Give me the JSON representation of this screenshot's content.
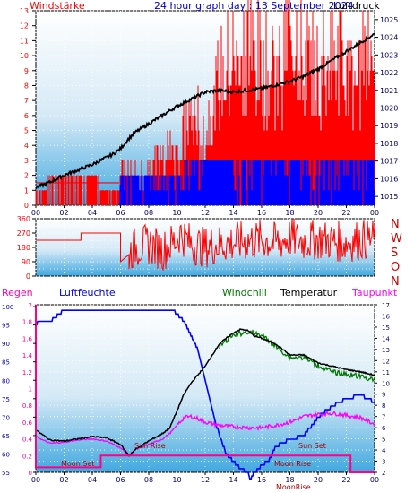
{
  "header": {
    "left_title": "Windstärke",
    "center_title": "24 hour graph day : 13 September 2024",
    "right_title": "Luftdruck"
  },
  "panel2": {
    "compass": [
      "N",
      "W",
      "S",
      "O",
      "N"
    ]
  },
  "panel3": {
    "labels": {
      "regen": "Regen",
      "luftfeuchte": "Luftfeuchte",
      "windchill": "Windchill",
      "temperatur": "Temperatur",
      "taupunkt": "Taupunkt"
    },
    "annotations": [
      "Moon Set",
      "Sun Rise",
      "Sun Set",
      "Moon Rise",
      "MoonRise"
    ]
  },
  "colors": {
    "wind": "#ff0000",
    "gust": "#0000ff",
    "pressure": "#000000",
    "humidity": "#0000ff",
    "temperature": "#000000",
    "windchill": "#007700",
    "dewpoint": "#ff00ff",
    "rain": "#ff0088",
    "axis_left_text": "#ff0000",
    "axis_pressure_text": "#000066",
    "axis_humidity_text": "#0000aa"
  },
  "chart_data": [
    {
      "type": "line",
      "title": "24 hour graph day : 13 September 2024",
      "x_ticks": [
        "00",
        "02",
        "04",
        "06",
        "08",
        "10",
        "12",
        "14",
        "16",
        "18",
        "20",
        "22",
        "00"
      ],
      "y_left": {
        "label": "Windstärke",
        "ticks": [
          0,
          1,
          2,
          3,
          4,
          5,
          6,
          7,
          8,
          9,
          10,
          11,
          12,
          13
        ],
        "lim": [
          0,
          13
        ]
      },
      "y_right": {
        "label": "Luftdruck",
        "ticks": [
          1015,
          1016,
          1017,
          1018,
          1019,
          1020,
          1021,
          1022,
          1023,
          1024,
          1025
        ],
        "lim": [
          1014.5,
          1025.5
        ]
      },
      "series": [
        {
          "name": "Luftdruck",
          "axis": "right",
          "x": [
            0,
            1,
            2,
            3,
            4,
            5,
            5.5,
            6,
            6.5,
            7,
            8,
            9,
            10,
            11,
            12,
            13,
            14,
            15,
            16,
            17,
            18,
            19,
            20,
            21,
            22,
            23,
            24
          ],
          "y": [
            1015.5,
            1015.8,
            1016.2,
            1016.5,
            1016.8,
            1017.2,
            1017.4,
            1017.7,
            1018.2,
            1018.6,
            1019.1,
            1019.6,
            1020.1,
            1020.5,
            1020.9,
            1021,
            1020.9,
            1021,
            1021.1,
            1021.3,
            1021.5,
            1021.8,
            1022.2,
            1022.7,
            1023.2,
            1023.7,
            1024.2
          ]
        },
        {
          "name": "Windstärke",
          "axis": "left",
          "x": [
            0,
            0.7,
            1,
            2,
            3,
            4,
            5,
            5.9,
            6,
            7,
            8,
            9,
            10,
            10.1,
            11,
            12,
            13,
            14,
            15,
            16,
            17,
            18,
            19,
            20,
            21,
            22,
            23,
            23.5,
            24
          ],
          "y": [
            1,
            1,
            2,
            2,
            2,
            2,
            1,
            1,
            2,
            2,
            2,
            4,
            4,
            4,
            6,
            5,
            8,
            10,
            11,
            9,
            8,
            12,
            10,
            9,
            10,
            9,
            8,
            12,
            8
          ]
        },
        {
          "name": "Böen",
          "axis": "left",
          "x": [
            0,
            2,
            4,
            5.9,
            6,
            7,
            8,
            9,
            10,
            11,
            12,
            13,
            14,
            15,
            16,
            17,
            18,
            19,
            20,
            21,
            22,
            23,
            24
          ],
          "y": [
            0,
            0,
            0,
            0,
            2,
            2,
            2,
            2,
            2,
            3,
            3,
            3,
            3,
            3,
            3,
            3,
            3,
            3,
            3,
            3,
            3,
            3,
            3
          ]
        }
      ]
    },
    {
      "type": "line",
      "y_left": {
        "ticks": [
          0,
          45,
          90,
          135,
          180,
          225,
          270,
          315,
          360
        ],
        "lim": [
          0,
          360
        ]
      },
      "series": [
        {
          "name": "Windrichtung",
          "x": [
            0,
            1,
            2,
            3,
            4,
            5,
            5.5,
            6,
            6.5,
            7,
            8,
            9,
            10,
            10.2,
            11,
            12,
            13,
            14,
            15,
            16,
            17,
            18,
            19,
            20,
            21,
            22,
            23,
            24
          ],
          "y": [
            225,
            225,
            270,
            270,
            270,
            270,
            270,
            135,
            135,
            180,
            200,
            160,
            230,
            270,
            200,
            180,
            200,
            210,
            220,
            230,
            210,
            240,
            220,
            230,
            220,
            210,
            230,
            230
          ]
        }
      ]
    },
    {
      "type": "line",
      "x_ticks": [
        "00",
        "02",
        "04",
        "06",
        "08",
        "10",
        "12",
        "14",
        "16",
        "18",
        "20",
        "22",
        "00"
      ],
      "y_left": {
        "label": "Luftfeuchte",
        "ticks": [
          55,
          60,
          65,
          70,
          75,
          80,
          85,
          90,
          95,
          100
        ],
        "lim": [
          55,
          100.5
        ]
      },
      "y_left_inner": {
        "label": "Regen",
        "ticks": [
          0,
          0.1,
          0.2,
          0.3,
          0.4,
          0.5,
          0.6,
          0.7,
          0.8,
          0.9,
          1,
          1.1,
          1.2,
          1.3,
          1.4,
          1.5,
          1.6,
          1.7,
          1.8,
          1.9,
          2
        ],
        "tick_labels": [
          "0",
          "",
          "0.2",
          "",
          "0.4",
          "",
          "0.6",
          "",
          "0.8",
          "",
          "1",
          "",
          "1.2",
          "",
          "1.4",
          "",
          "1.6",
          "",
          "1.8",
          "",
          "2"
        ],
        "lim": [
          0,
          2
        ]
      },
      "y_right": {
        "label": "Temperatur",
        "ticks": [
          2,
          3,
          4,
          5,
          6,
          7,
          8,
          9,
          10,
          11,
          12,
          13,
          14,
          15,
          16,
          17
        ],
        "lim": [
          2,
          17
        ]
      },
      "series": [
        {
          "name": "Luftfeuchte",
          "axis": "left",
          "x": [
            0,
            0.2,
            1,
            2,
            3,
            4,
            5,
            6,
            7,
            8,
            9,
            9.7,
            10,
            10.5,
            11,
            11.5,
            12,
            12.5,
            13,
            13.5,
            14,
            14.5,
            15,
            15.2,
            15.5,
            16,
            16.5,
            17,
            18,
            19,
            20,
            21,
            22,
            23,
            24
          ],
          "y": [
            95,
            96,
            96,
            99,
            99,
            99,
            99,
            99,
            99,
            99,
            99,
            99,
            98,
            96,
            92,
            88,
            80,
            72,
            65,
            60,
            58,
            56,
            55,
            53,
            55,
            57,
            58,
            62,
            64,
            65,
            70,
            73,
            75,
            76,
            74
          ]
        },
        {
          "name": "Temperatur",
          "axis": "right",
          "x": [
            0,
            1,
            2,
            3,
            4,
            5,
            6,
            6.6,
            7,
            8,
            9,
            9.5,
            10,
            10.5,
            11,
            12,
            13,
            13.5,
            14,
            14.5,
            15,
            15.5,
            16,
            17,
            18,
            19,
            20,
            21,
            22,
            23,
            24
          ],
          "y": [
            5.8,
            4.9,
            4.8,
            5,
            5.2,
            5.1,
            4.5,
            3.5,
            4,
            4.8,
            5.5,
            6,
            7.5,
            9,
            10,
            11.5,
            13.5,
            14,
            14.5,
            14.8,
            14.7,
            14.2,
            14,
            13.5,
            12.5,
            12.5,
            11.8,
            11.5,
            11.2,
            11,
            10.7
          ]
        },
        {
          "name": "Windchill",
          "axis": "right",
          "x": [
            13,
            14,
            15,
            16,
            17,
            18,
            19,
            20,
            21,
            22,
            23,
            24
          ],
          "y": [
            13.5,
            14.5,
            14.8,
            14.5,
            13.5,
            12.5,
            12.5,
            11.8,
            11.2,
            11,
            10.8,
            10.5
          ]
        },
        {
          "name": "Taupunkt",
          "axis": "right",
          "x": [
            0,
            1,
            2,
            3,
            4,
            5,
            6,
            6.6,
            7,
            8,
            9,
            9.5,
            10,
            10.5,
            11,
            11.5,
            12,
            13,
            14,
            15,
            16,
            17,
            18,
            19,
            20,
            21,
            22,
            23,
            24
          ],
          "y": [
            5.2,
            4.6,
            4.7,
            4.9,
            5,
            4.8,
            4.2,
            3.5,
            4,
            4.5,
            5,
            5.5,
            6.2,
            6.9,
            7,
            6.8,
            6.5,
            6.2,
            6.1,
            6,
            6,
            6.2,
            6.5,
            7,
            7.2,
            7.3,
            7.1,
            6.9,
            6.3
          ]
        },
        {
          "name": "Regen",
          "axis": "inner",
          "x": [
            -0.1,
            0,
            0,
            4.6,
            4.6,
            7,
            7,
            22.3,
            22.3,
            24,
            24
          ],
          "y": [
            2,
            2,
            0.06,
            0.06,
            0.2,
            0.2,
            0.2,
            0.2,
            0,
            0,
            0
          ]
        }
      ]
    }
  ]
}
